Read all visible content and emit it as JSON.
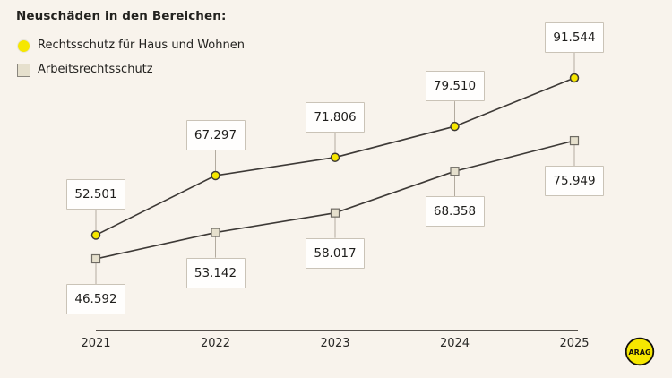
{
  "chart_data": {
    "type": "line",
    "title": "Neuschäden in den Bereichen:",
    "categories": [
      "2021",
      "2022",
      "2023",
      "2024",
      "2025"
    ],
    "series": [
      {
        "name": "Rechtsschutz für Haus und Wohnen",
        "marker": "circle",
        "color": "#f6e700",
        "marker_stroke": "#3d3936",
        "values": [
          52501,
          67297,
          71806,
          79510,
          91544
        ],
        "labels": [
          "52.501",
          "67.297",
          "71.806",
          "79.510",
          "91.544"
        ],
        "label_position": "above"
      },
      {
        "name": "Arbeitsrechtsschutz",
        "marker": "square",
        "color": "#e6e0cd",
        "marker_stroke": "#6f6b64",
        "values": [
          46592,
          53142,
          58017,
          68358,
          75949
        ],
        "labels": [
          "46.592",
          "53.142",
          "58.017",
          "68.358",
          "75.949"
        ],
        "label_position": "below"
      }
    ],
    "line_color": "#3d3936",
    "legend_position": "top-left",
    "grid": false,
    "x_axis_range": [
      "2021",
      "2025"
    ],
    "y_value_range": [
      46592,
      91544
    ]
  },
  "logo": {
    "text": "ARAG",
    "color": "#f6e700",
    "outline": "#12100c"
  },
  "colors": {
    "background": "#f8f3ec",
    "box_border": "#cac3b7",
    "box_background": "#fffefd",
    "connector": "#b3ab9f",
    "axis_line": "#55504b",
    "text": "#23221f"
  }
}
